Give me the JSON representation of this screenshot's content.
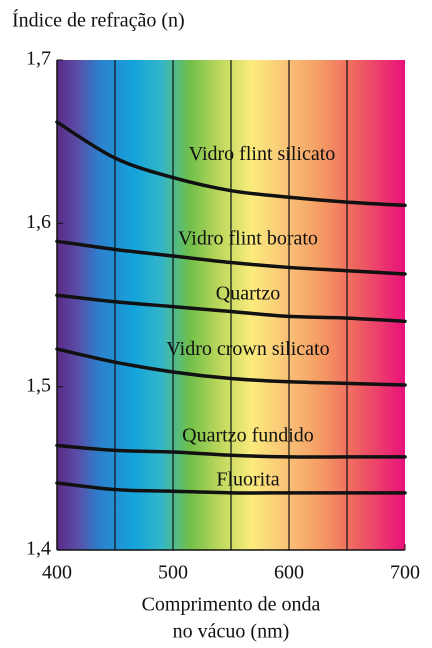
{
  "chart_data": {
    "type": "line",
    "ylabel": "Índice de refração (n)",
    "xlabel": [
      "Comprimento de onda",
      "no vácuo (nm)"
    ],
    "x": [
      400,
      450,
      500,
      550,
      600,
      650,
      700
    ],
    "series": [
      {
        "name": "Vidro flint silicato",
        "color": "#111111",
        "values": [
          1.662,
          1.64,
          1.628,
          1.62,
          1.616,
          1.613,
          1.611
        ]
      },
      {
        "name": "Vidro flint borato",
        "color": "#111111",
        "values": [
          1.589,
          1.584,
          1.58,
          1.576,
          1.573,
          1.571,
          1.569
        ]
      },
      {
        "name": "Quartzo",
        "color": "#111111",
        "values": [
          1.556,
          1.552,
          1.549,
          1.546,
          1.543,
          1.542,
          1.54
        ]
      },
      {
        "name": "Vidro crown silicato",
        "color": "#111111",
        "values": [
          1.523,
          1.515,
          1.509,
          1.505,
          1.503,
          1.502,
          1.501
        ]
      },
      {
        "name": "Quartzo fundido",
        "color": "#111111",
        "values": [
          1.464,
          1.461,
          1.46,
          1.458,
          1.457,
          1.457,
          1.457
        ]
      },
      {
        "name": "Fluorita",
        "color": "#111111",
        "values": [
          1.441,
          1.437,
          1.436,
          1.435,
          1.435,
          1.435,
          1.435
        ]
      }
    ],
    "xlim": [
      400,
      700
    ],
    "xticks": [
      400,
      500,
      600,
      700
    ],
    "ylim": [
      1.4,
      1.7
    ],
    "yticks": [
      {
        "value": 1.4,
        "label": "1,4"
      },
      {
        "value": 1.5,
        "label": "1,5"
      },
      {
        "value": 1.6,
        "label": "1,6"
      },
      {
        "value": 1.7,
        "label": "1,7"
      }
    ],
    "xgrid_lines": [
      450,
      500,
      550,
      600,
      650
    ]
  }
}
